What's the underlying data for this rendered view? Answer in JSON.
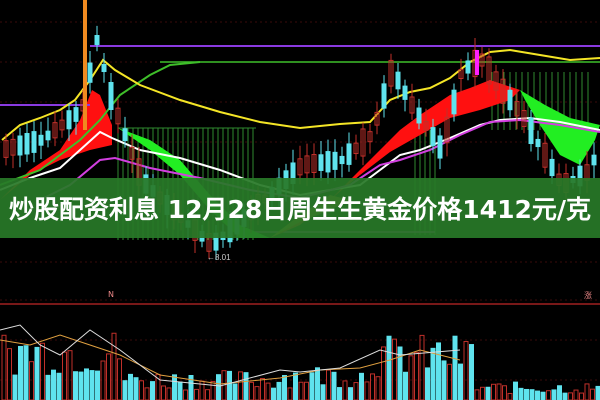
{
  "headline": "炒股配资利息 12月28日周生生黄金价格1412元/克",
  "chart": {
    "low_price_label": "←8.01",
    "volume_marker_left": "N",
    "volume_marker_right": "涨"
  },
  "colors": {
    "banner": "#2f7f2f",
    "up_candle": "#c0302a",
    "down_candle": "#5fe3ee",
    "ma_yellow": "#f4e526",
    "ma_green": "#3fbf2a",
    "ma_white": "#ffffff",
    "ma_magenta": "#d23fe0",
    "level_purple": "#8a3ae0",
    "ribbon_red": "#ff1010",
    "ribbon_green": "#22ee22"
  }
}
